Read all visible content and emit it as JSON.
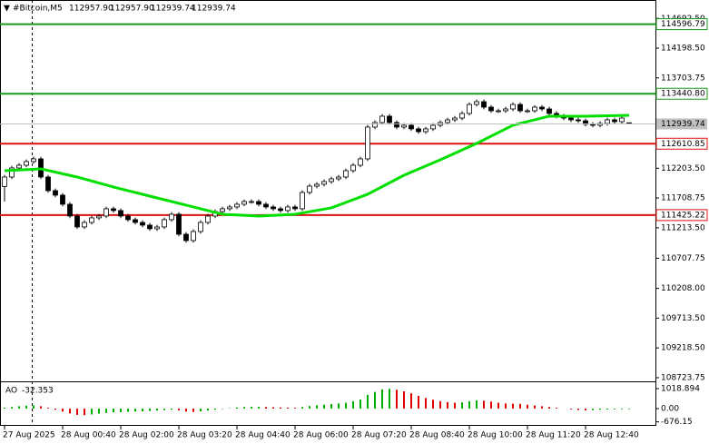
{
  "chart_data": {
    "type": "candlestick",
    "title": "#Bitcoin,M5",
    "ohlc_labels": [
      "112957.90",
      "112957.90",
      "112939.74",
      "112939.74"
    ],
    "categories": [
      "27 Aug 2025",
      null,
      null,
      null,
      null,
      null,
      null,
      null,
      "28 Aug 00:40",
      null,
      null,
      null,
      null,
      null,
      null,
      null,
      "28 Aug 02:00",
      null,
      null,
      null,
      null,
      null,
      null,
      null,
      "28 Aug 03:20",
      null,
      null,
      null,
      null,
      null,
      null,
      null,
      "28 Aug 04:40",
      null,
      null,
      null,
      null,
      null,
      null,
      null,
      "28 Aug 06:00",
      null,
      null,
      null,
      null,
      null,
      null,
      null,
      "28 Aug 07:20",
      null,
      null,
      null,
      null,
      null,
      null,
      null,
      "28 Aug 08:40",
      null,
      null,
      null,
      null,
      null,
      null,
      null,
      "28 Aug 10:00",
      null,
      null,
      null,
      null,
      null,
      null,
      null,
      "28 Aug 11:20",
      null,
      null,
      null,
      null,
      null,
      null,
      null,
      "28 Aug 12:40",
      null,
      null,
      null,
      null,
      null,
      null
    ],
    "open": [
      111900,
      112057,
      112208,
      112253,
      112314,
      112359,
      112057,
      111831,
      111756,
      111605,
      111409,
      111228,
      111303,
      111379,
      111409,
      111530,
      111500,
      111409,
      111349,
      111303,
      111258,
      111198,
      111228,
      111349,
      111439,
      111107,
      111002,
      111152,
      111303,
      111409,
      111484,
      111530,
      111560,
      111605,
      111650,
      111650,
      111605,
      111560,
      111530,
      111500,
      111560,
      111530,
      111801,
      111906,
      111937,
      111982,
      112027,
      112057,
      112163,
      112253,
      112359,
      112887,
      112962,
      113068,
      112962,
      112887,
      112917,
      112857,
      112811,
      112857,
      112917,
      112962,
      113007,
      113037,
      113113,
      113263,
      113309,
      113218,
      113158,
      113158,
      113188,
      113263,
      113158,
      113158,
      113218,
      113188,
      113113,
      113068,
      113037,
      113007,
      112992,
      112932,
      112917,
      112947,
      113007,
      112977,
      112957.9
    ],
    "high": [
      112092,
      112243,
      112288,
      112349,
      112394,
      112394,
      112092,
      111866,
      111791,
      111640,
      111444,
      111338,
      111414,
      111444,
      111565,
      111565,
      111535,
      111444,
      111384,
      111338,
      111293,
      111263,
      111384,
      111474,
      111474,
      111142,
      111187,
      111338,
      111444,
      111519,
      111565,
      111595,
      111640,
      111685,
      111685,
      111685,
      111640,
      111595,
      111565,
      111595,
      111595,
      111836,
      111941,
      111972,
      112017,
      112062,
      112092,
      112198,
      112288,
      112394,
      112922,
      112997,
      113103,
      113103,
      112997,
      112952,
      112952,
      112892,
      112892,
      112952,
      112997,
      113042,
      113072,
      113148,
      113298,
      113344,
      113344,
      113253,
      113193,
      113223,
      113298,
      113298,
      113193,
      113253,
      113253,
      113223,
      113148,
      113103,
      113072,
      113042,
      113027,
      112967,
      112982,
      113042,
      113042,
      113072,
      112957.9
    ],
    "low": [
      111650,
      112022,
      112173,
      112218,
      112279,
      112022,
      111796,
      111721,
      111570,
      111374,
      111193,
      111193,
      111268,
      111344,
      111374,
      111465,
      111374,
      111314,
      111268,
      111223,
      111163,
      111163,
      111193,
      111314,
      111072,
      110967,
      110967,
      111117,
      111268,
      111374,
      111449,
      111495,
      111525,
      111570,
      111615,
      111570,
      111525,
      111495,
      111465,
      111465,
      111495,
      111495,
      111766,
      111871,
      111902,
      111947,
      111992,
      112022,
      112128,
      112218,
      112324,
      112852,
      112927,
      112927,
      112852,
      112852,
      112822,
      112776,
      112776,
      112822,
      112882,
      112927,
      112972,
      113002,
      113078,
      113228,
      113183,
      113123,
      113123,
      113123,
      113153,
      113123,
      113123,
      113123,
      113153,
      113078,
      113033,
      113002,
      112972,
      112957,
      112897,
      112882,
      112882,
      112912,
      112942,
      112942,
      112939.74
    ],
    "close": [
      112057,
      112208,
      112253,
      112314,
      112359,
      112057,
      111831,
      111756,
      111605,
      111409,
      111228,
      111303,
      111379,
      111409,
      111530,
      111500,
      111409,
      111349,
      111303,
      111258,
      111198,
      111228,
      111349,
      111439,
      111107,
      111002,
      111152,
      111303,
      111409,
      111484,
      111530,
      111560,
      111605,
      111650,
      111650,
      111605,
      111560,
      111530,
      111500,
      111560,
      111530,
      111801,
      111906,
      111937,
      111982,
      112027,
      112057,
      112163,
      112253,
      112359,
      112887,
      112962,
      113068,
      112962,
      112887,
      112917,
      112857,
      112811,
      112857,
      112917,
      112962,
      113007,
      113037,
      113113,
      113263,
      113309,
      113218,
      113158,
      113158,
      113188,
      113263,
      113158,
      113158,
      113218,
      113188,
      113113,
      113068,
      113037,
      113007,
      112992,
      112932,
      112917,
      112947,
      113007,
      112977,
      113037,
      112939.74
    ],
    "candle_color": "#000000",
    "moving_average": {
      "color": "#00e000",
      "x": [
        0,
        5,
        10,
        15,
        20,
        25,
        30,
        35,
        40,
        45,
        50,
        55,
        60,
        65,
        70,
        75,
        80,
        86
      ],
      "values": [
        112163,
        112193,
        112057,
        111891,
        111740,
        111590,
        111439,
        111409,
        111439,
        111545,
        111771,
        112087,
        112344,
        112615,
        112917,
        113068,
        113068,
        113083
      ]
    },
    "levels": [
      {
        "value": 114596.79,
        "color": "#1a9a1a"
      },
      {
        "value": 113440.8,
        "label": "113440.80",
        "color": "#1a9a1a"
      },
      {
        "value": 112610.85,
        "color": "#e01010"
      },
      {
        "value": 111425.22,
        "color": "#e01010"
      }
    ],
    "ylim": [
      108663,
      114998
    ],
    "yticks": [
      {
        "value": 114692.5,
        "label": "114692.50"
      },
      {
        "value": 114198.5,
        "label": "114198.50"
      },
      113703.75,
      {
        "value": 112203.5,
        "label": "112203.50"
      },
      111708.75,
      {
        "value": 111213.5,
        "label": "111213.50"
      },
      110707.75,
      {
        "value": 110208,
        "label": "110208.00"
      },
      {
        "value": 109713.5,
        "label": "109713.50"
      },
      {
        "value": 109218.5,
        "label": "109218.50"
      },
      108723.75
    ],
    "ao": {
      "name": "AO",
      "up_color": "#00b000",
      "down_color": "#e00000",
      "ylim": [
        -880,
        1297
      ],
      "yticks": [
        1018.894,
        {
          "value": 0,
          "label": "0.00"
        },
        -676.15
      ],
      "values": [
        50,
        80,
        120,
        150,
        160,
        120,
        40,
        -60,
        -150,
        -250,
        -320,
        -330,
        -300,
        -260,
        -220,
        -200,
        -180,
        -160,
        -150,
        -140,
        -120,
        -100,
        -80,
        -60,
        -90,
        -150,
        -170,
        -140,
        -100,
        -60,
        -20,
        20,
        60,
        80,
        90,
        90,
        80,
        70,
        60,
        50,
        40,
        80,
        130,
        170,
        200,
        230,
        260,
        300,
        380,
        460,
        700,
        850,
        980,
        1010,
        960,
        880,
        780,
        650,
        540,
        450,
        380,
        330,
        300,
        320,
        380,
        420,
        400,
        360,
        300,
        260,
        250,
        240,
        200,
        160,
        120,
        80,
        40,
        0,
        -40,
        -70,
        -90,
        -80,
        -60,
        -50,
        -40,
        -35,
        -32.353
      ]
    }
  }
}
